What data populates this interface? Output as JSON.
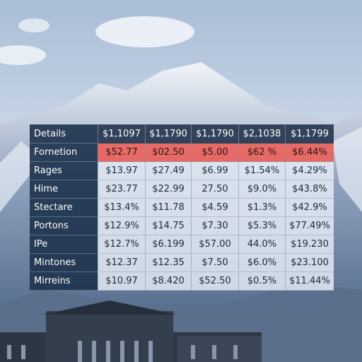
{
  "table": {
    "header": [
      "Details",
      "$1,1097",
      "$1,1790",
      "$1,1790",
      "$2,1038",
      "$1,1799"
    ],
    "rows": [
      [
        "Fornetion",
        "$52.77",
        "$02.50",
        "$5.00",
        "$62 %",
        "$6.44%"
      ],
      [
        "Rages",
        "$13.97",
        "$27.49",
        "$6.99",
        "$1.54%",
        "$4.29%"
      ],
      [
        "Hime",
        "$23.77",
        "$22.99",
        "27.50",
        "$9.0%",
        "$43.8%"
      ],
      [
        "Stectare",
        "$13.4%",
        "$11.78",
        "$4.59",
        "$1.3%",
        "$42.9%"
      ],
      [
        "Portons",
        "$12.9%",
        "$14.75",
        "$7.30",
        "$5.3%",
        "$77.49%"
      ],
      [
        "IPe",
        "$12.7%",
        "$6.199",
        "$57.00",
        "44.0%",
        "$19.230"
      ],
      [
        "Mintones",
        "$12.37",
        "$12.35",
        "$7.50",
        "$6.0%",
        "$23.100"
      ],
      [
        "Mirreins",
        "$10.97",
        "$8.420",
        "$52.50",
        "$0.5%",
        "$11.44%"
      ]
    ]
  }
}
